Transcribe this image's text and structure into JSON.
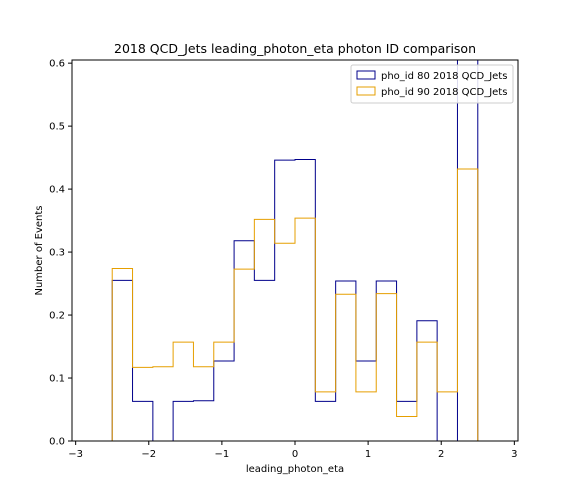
{
  "chart_data": {
    "type": "step-histogram",
    "title": "2018 QCD_Jets leading_photon_eta photon ID comparison",
    "xlabel": "leading_photon_eta",
    "ylabel": "Number of Events",
    "xlim": [
      -3.05,
      3.05
    ],
    "ylim": [
      0,
      0.605
    ],
    "xticks": [
      -3,
      -2,
      -1,
      0,
      1,
      2,
      3
    ],
    "yticks": [
      0.0,
      0.1,
      0.2,
      0.3,
      0.4,
      0.5,
      0.6
    ],
    "ytick_labels": [
      "0.0",
      "0.1",
      "0.2",
      "0.3",
      "0.4",
      "0.5",
      "0.6"
    ],
    "bin_edges": [
      -2.5,
      -2.222,
      -1.944,
      -1.667,
      -1.389,
      -1.111,
      -0.833,
      -0.556,
      -0.278,
      0.0,
      0.278,
      0.556,
      0.833,
      1.111,
      1.389,
      1.667,
      1.944,
      2.222,
      2.5
    ],
    "legend_position": "upper right",
    "series": [
      {
        "name": "pho_id 80 2018 QCD_Jets",
        "color": "#00008b",
        "values": [
          0.255,
          0.063,
          0.0,
          0.063,
          0.064,
          0.127,
          0.318,
          0.255,
          0.446,
          0.447,
          0.063,
          0.254,
          0.127,
          0.254,
          0.063,
          0.191,
          0.0,
          0.7
        ]
      },
      {
        "name": "pho_id 90 2018 QCD_Jets",
        "color": "#e69f00",
        "values": [
          0.274,
          0.117,
          0.118,
          0.157,
          0.118,
          0.157,
          0.273,
          0.352,
          0.314,
          0.354,
          0.078,
          0.233,
          0.078,
          0.234,
          0.039,
          0.157,
          0.078,
          0.432
        ]
      }
    ]
  }
}
